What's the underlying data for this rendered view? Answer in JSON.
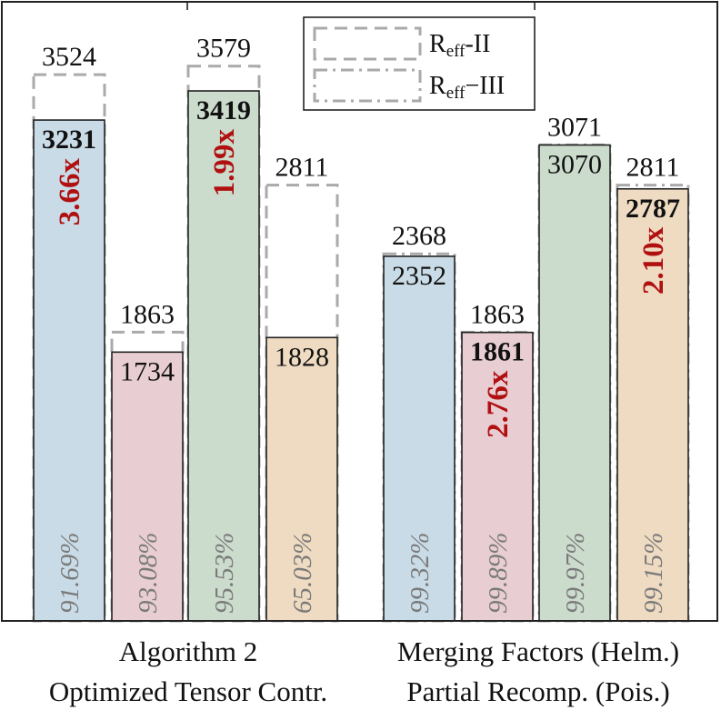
{
  "chart_data": {
    "type": "bar",
    "groups": [
      [
        "Algorithm 2",
        "Optimized Tensor Contr."
      ],
      [
        "Merging Factors (Helm.)",
        "Partial Recomp. (Pois.)"
      ]
    ],
    "bars": [
      {
        "group": 0,
        "value": 3231,
        "envelope": 3524,
        "envelope_style": "dashed",
        "bold": true,
        "speedup": "3.66x",
        "percent": "91.69%",
        "color": "#c9dbe6"
      },
      {
        "group": 0,
        "value": 1734,
        "envelope": 1863,
        "envelope_style": "dashed",
        "bold": false,
        "speedup": "",
        "percent": "93.08%",
        "color": "#e8cdd2"
      },
      {
        "group": 0,
        "value": 3419,
        "envelope": 3579,
        "envelope_style": "dashed",
        "bold": true,
        "speedup": "1.99x",
        "percent": "95.53%",
        "color": "#cbdbcc"
      },
      {
        "group": 0,
        "value": 1828,
        "envelope": 2811,
        "envelope_style": "dashed",
        "bold": false,
        "speedup": "",
        "percent": "65.03%",
        "color": "#efdbc2"
      },
      {
        "group": 1,
        "value": 2352,
        "envelope": 2368,
        "envelope_style": "dashdot",
        "bold": false,
        "speedup": "",
        "percent": "99.32%",
        "color": "#c9dbe6"
      },
      {
        "group": 1,
        "value": 1861,
        "envelope": 1863,
        "envelope_style": "dashdot",
        "bold": true,
        "speedup": "2.76x",
        "percent": "99.89%",
        "color": "#e8cdd2"
      },
      {
        "group": 1,
        "value": 3070,
        "envelope": 3071,
        "envelope_style": "dashdot",
        "bold": false,
        "speedup": "",
        "percent": "99.97%",
        "color": "#cbdbcc"
      },
      {
        "group": 1,
        "value": 2787,
        "envelope": 2811,
        "envelope_style": "dashdot",
        "bold": true,
        "speedup": "2.10x",
        "percent": "99.15%",
        "color": "#efdbc2"
      }
    ],
    "legend": {
      "position": "top-center",
      "items": [
        {
          "label": "R",
          "sub": "eff",
          "suffix": "-II",
          "style": "dashed"
        },
        {
          "label": "R",
          "sub": "eff",
          "suffix": "−III",
          "style": "dashdot"
        }
      ]
    },
    "ylim": [
      0,
      4000
    ],
    "grid": false,
    "colors": {
      "speedup": "#b01010",
      "percent": "#7a7a7a",
      "envelope": "#aaaaaa"
    }
  }
}
